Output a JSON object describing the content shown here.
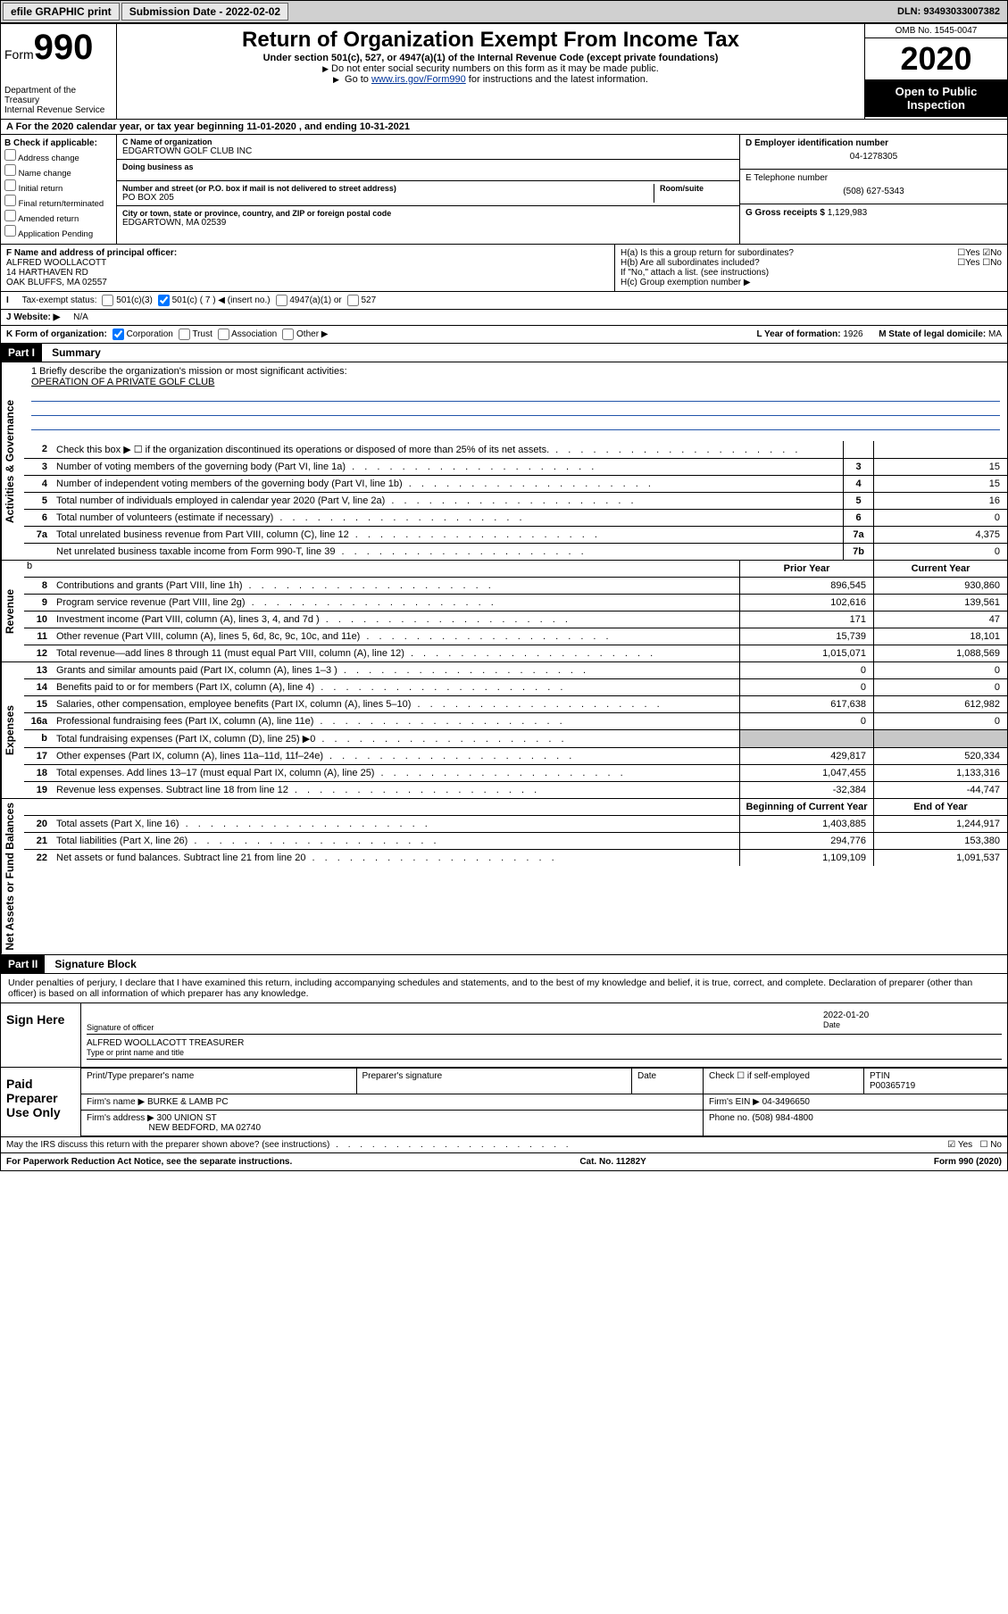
{
  "topbar": {
    "efile": "efile GRAPHIC print",
    "submission_label": "Submission Date - 2022-02-02",
    "dln_label": "DLN: 93493033007382"
  },
  "header": {
    "form_word": "Form",
    "form_number": "990",
    "dept": "Department of the Treasury\nInternal Revenue Service",
    "title": "Return of Organization Exempt From Income Tax",
    "subtitle": "Under section 501(c), 527, or 4947(a)(1) of the Internal Revenue Code (except private foundations)",
    "note1": "Do not enter social security numbers on this form as it may be made public.",
    "note2_pre": "Go to ",
    "note2_link": "www.irs.gov/Form990",
    "note2_post": " for instructions and the latest information.",
    "omb": "OMB No. 1545-0047",
    "year": "2020",
    "open": "Open to Public Inspection"
  },
  "section_a": "A For the 2020 calendar year, or tax year beginning 11-01-2020   , and ending 10-31-2021",
  "col_b": {
    "header": "B Check if applicable:",
    "opts": [
      "Address change",
      "Name change",
      "Initial return",
      "Final return/terminated",
      "Amended return",
      "Application Pending"
    ]
  },
  "col_c": {
    "name_label": "C Name of organization",
    "name": "EDGARTOWN GOLF CLUB INC",
    "dba_label": "Doing business as",
    "dba": "",
    "street_label": "Number and street (or P.O. box if mail is not delivered to street address)",
    "room_label": "Room/suite",
    "street": "PO BOX 205",
    "city_label": "City or town, state or province, country, and ZIP or foreign postal code",
    "city": "EDGARTOWN, MA  02539"
  },
  "col_d": {
    "ein_label": "D Employer identification number",
    "ein": "04-1278305",
    "tel_label": "E Telephone number",
    "tel": "(508) 627-5343",
    "gross_label": "G Gross receipts $",
    "gross": "1,129,983"
  },
  "row_f": {
    "label": "F Name and address of principal officer:",
    "name": "ALFRED WOOLLACOTT",
    "addr1": "14 HARTHAVEN RD",
    "addr2": "OAK BLUFFS, MA  02557"
  },
  "row_h": {
    "ha": "H(a)  Is this a group return for subordinates?",
    "hb": "H(b)  Are all subordinates included?",
    "hb_note": "If \"No,\" attach a list. (see instructions)",
    "hc": "H(c)  Group exemption number ▶"
  },
  "tax_status": {
    "label": "Tax-exempt status:",
    "opts": [
      "501(c)(3)",
      "501(c) ( 7 ) ◀ (insert no.)",
      "4947(a)(1) or",
      "527"
    ]
  },
  "website": {
    "label": "J  Website: ▶",
    "value": "N/A"
  },
  "row_k": {
    "label": "K Form of organization:",
    "opts": [
      "Corporation",
      "Trust",
      "Association",
      "Other ▶"
    ],
    "l_label": "L Year of formation:",
    "l_val": "1926",
    "m_label": "M State of legal domicile:",
    "m_val": "MA"
  },
  "part1": {
    "tag": "Part I",
    "title": "Summary"
  },
  "mission": {
    "prompt": "1  Briefly describe the organization's mission or most significant activities:",
    "text": "OPERATION OF A PRIVATE GOLF CLUB"
  },
  "governance_lines": [
    {
      "n": "2",
      "d": "Check this box ▶ ☐  if the organization discontinued its operations or disposed of more than 25% of its net assets.",
      "box": "",
      "v": ""
    },
    {
      "n": "3",
      "d": "Number of voting members of the governing body (Part VI, line 1a)",
      "box": "3",
      "v": "15"
    },
    {
      "n": "4",
      "d": "Number of independent voting members of the governing body (Part VI, line 1b)",
      "box": "4",
      "v": "15"
    },
    {
      "n": "5",
      "d": "Total number of individuals employed in calendar year 2020 (Part V, line 2a)",
      "box": "5",
      "v": "16"
    },
    {
      "n": "6",
      "d": "Total number of volunteers (estimate if necessary)",
      "box": "6",
      "v": "0"
    },
    {
      "n": "7a",
      "d": "Total unrelated business revenue from Part VIII, column (C), line 12",
      "box": "7a",
      "v": "4,375"
    },
    {
      "n": "",
      "d": "Net unrelated business taxable income from Form 990-T, line 39",
      "box": "7b",
      "v": "0"
    }
  ],
  "twocol_headers": {
    "prior": "Prior Year",
    "current": "Current Year"
  },
  "revenue": [
    {
      "n": "8",
      "d": "Contributions and grants (Part VIII, line 1h)",
      "p": "896,545",
      "c": "930,860"
    },
    {
      "n": "9",
      "d": "Program service revenue (Part VIII, line 2g)",
      "p": "102,616",
      "c": "139,561"
    },
    {
      "n": "10",
      "d": "Investment income (Part VIII, column (A), lines 3, 4, and 7d )",
      "p": "171",
      "c": "47"
    },
    {
      "n": "11",
      "d": "Other revenue (Part VIII, column (A), lines 5, 6d, 8c, 9c, 10c, and 11e)",
      "p": "15,739",
      "c": "18,101"
    },
    {
      "n": "12",
      "d": "Total revenue—add lines 8 through 11 (must equal Part VIII, column (A), line 12)",
      "p": "1,015,071",
      "c": "1,088,569"
    }
  ],
  "expenses": [
    {
      "n": "13",
      "d": "Grants and similar amounts paid (Part IX, column (A), lines 1–3 )",
      "p": "0",
      "c": "0"
    },
    {
      "n": "14",
      "d": "Benefits paid to or for members (Part IX, column (A), line 4)",
      "p": "0",
      "c": "0"
    },
    {
      "n": "15",
      "d": "Salaries, other compensation, employee benefits (Part IX, column (A), lines 5–10)",
      "p": "617,638",
      "c": "612,982"
    },
    {
      "n": "16a",
      "d": "Professional fundraising fees (Part IX, column (A), line 11e)",
      "p": "0",
      "c": "0"
    },
    {
      "n": "b",
      "d": "Total fundraising expenses (Part IX, column (D), line 25) ▶0",
      "p": "",
      "c": "",
      "shade": true
    },
    {
      "n": "17",
      "d": "Other expenses (Part IX, column (A), lines 11a–11d, 11f–24e)",
      "p": "429,817",
      "c": "520,334"
    },
    {
      "n": "18",
      "d": "Total expenses. Add lines 13–17 (must equal Part IX, column (A), line 25)",
      "p": "1,047,455",
      "c": "1,133,316"
    },
    {
      "n": "19",
      "d": "Revenue less expenses. Subtract line 18 from line 12",
      "p": "-32,384",
      "c": "-44,747"
    }
  ],
  "netassets_headers": {
    "begin": "Beginning of Current Year",
    "end": "End of Year"
  },
  "netassets": [
    {
      "n": "20",
      "d": "Total assets (Part X, line 16)",
      "p": "1,403,885",
      "c": "1,244,917"
    },
    {
      "n": "21",
      "d": "Total liabilities (Part X, line 26)",
      "p": "294,776",
      "c": "153,380"
    },
    {
      "n": "22",
      "d": "Net assets or fund balances. Subtract line 21 from line 20",
      "p": "1,109,109",
      "c": "1,091,537"
    }
  ],
  "vtabs": {
    "governance": "Activities & Governance",
    "revenue": "Revenue",
    "expenses": "Expenses",
    "netassets": "Net Assets or Fund Balances"
  },
  "part2": {
    "tag": "Part II",
    "title": "Signature Block"
  },
  "penalties": "Under penalties of perjury, I declare that I have examined this return, including accompanying schedules and statements, and to the best of my knowledge and belief, it is true, correct, and complete. Declaration of preparer (other than officer) is based on all information of which preparer has any knowledge.",
  "sign": {
    "here": "Sign Here",
    "sig_label": "Signature of officer",
    "date_label": "Date",
    "date": "2022-01-20",
    "typed": "ALFRED WOOLLACOTT TREASURER",
    "typed_label": "Type or print name and title"
  },
  "paid": {
    "label": "Paid Preparer Use Only",
    "h1": "Print/Type preparer's name",
    "h2": "Preparer's signature",
    "h3": "Date",
    "h4_a": "Check ☐ if self-employed",
    "h4_b": "PTIN",
    "ptin": "P00365719",
    "firm_name_l": "Firm's name    ▶",
    "firm_name": "BURKE & LAMB PC",
    "firm_ein_l": "Firm's EIN ▶",
    "firm_ein": "04-3496650",
    "firm_addr_l": "Firm's address ▶",
    "firm_addr1": "300 UNION ST",
    "firm_addr2": "NEW BEDFORD, MA  02740",
    "phone_l": "Phone no.",
    "phone": "(508) 984-4800"
  },
  "discuss": "May the IRS discuss this return with the preparer shown above? (see instructions)",
  "footer": {
    "left": "For Paperwork Reduction Act Notice, see the separate instructions.",
    "mid": "Cat. No. 11282Y",
    "right": "Form 990 (2020)"
  },
  "colors": {
    "link": "#003399",
    "black": "#000000",
    "shade": "#c8c8c8",
    "topbar": "#d0d0d0"
  }
}
